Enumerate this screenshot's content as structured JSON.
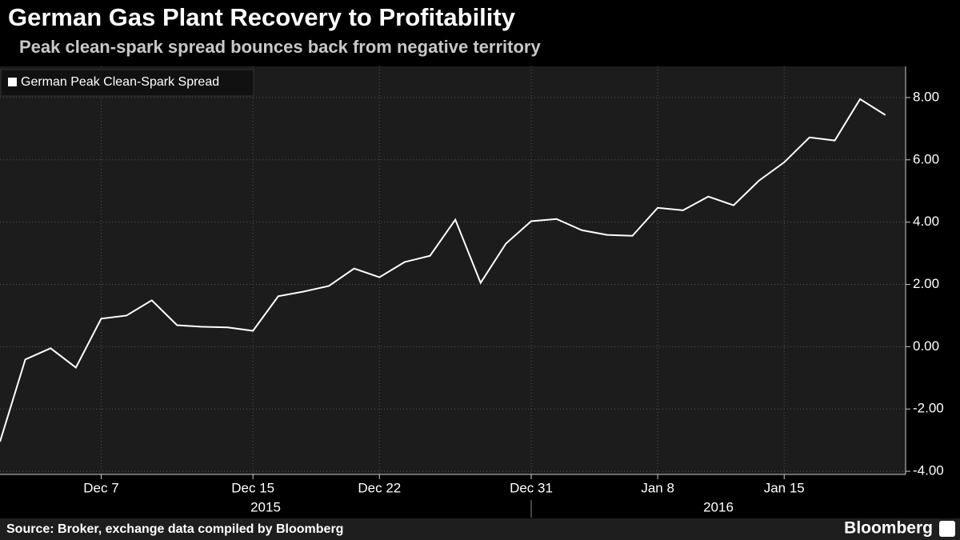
{
  "chart_data": {
    "type": "line",
    "title": "German Gas Plant Recovery to Profitability",
    "subtitle": "Peak clean-spark spread bounces back from negative territory",
    "source": "Source: Broker, exchange data compiled by Bloomberg",
    "brand": "Bloomberg",
    "categories": [
      null,
      null,
      null,
      null,
      "Dec 7",
      null,
      null,
      null,
      null,
      null,
      "Dec 15",
      null,
      null,
      null,
      null,
      "Dec 22",
      null,
      null,
      null,
      null,
      null,
      "Dec 31",
      null,
      null,
      null,
      null,
      "Jan 8",
      null,
      null,
      null,
      null,
      "Jan 15",
      null,
      null,
      null,
      null
    ],
    "x_groups": [
      {
        "label": "2015",
        "start": 0,
        "end": 21
      },
      {
        "label": "2016",
        "start": 21,
        "end": 35
      }
    ],
    "series": [
      {
        "name": "German Peak Clean-Spark Spread",
        "color": "#ffffff",
        "values": [
          -3.05,
          -0.41,
          -0.05,
          -0.67,
          0.9,
          1.0,
          1.49,
          0.69,
          0.64,
          0.62,
          0.51,
          1.62,
          1.77,
          1.95,
          2.51,
          2.23,
          2.72,
          2.92,
          4.08,
          2.05,
          3.31,
          4.03,
          4.1,
          3.74,
          3.59,
          3.56,
          4.46,
          4.38,
          4.82,
          4.54,
          5.33,
          5.92,
          6.72,
          6.62,
          7.95,
          7.44
        ]
      }
    ],
    "ylim": [
      -4.1,
      9
    ],
    "yticks": [
      {
        "value": -4,
        "label": "-4.00"
      },
      {
        "value": -2,
        "label": "-2.00"
      },
      {
        "value": 0,
        "label": "0.00"
      },
      {
        "value": 2,
        "label": "2.00"
      },
      {
        "value": 4,
        "label": "4.00"
      },
      {
        "value": 6,
        "label": "6.00"
      },
      {
        "value": 8,
        "label": "8.00"
      }
    ],
    "y_axis_side": "right",
    "grid": true,
    "legend": "top-left"
  }
}
